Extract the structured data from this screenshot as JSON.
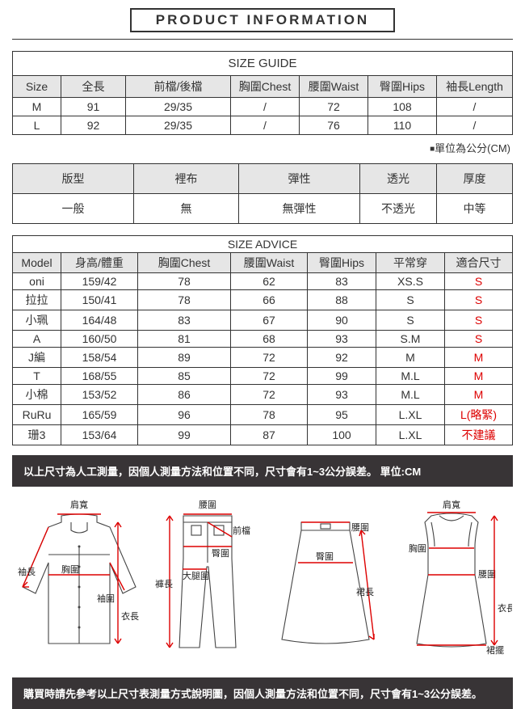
{
  "title": "PRODUCT INFORMATION",
  "sizeGuide": {
    "heading": "SIZE GUIDE",
    "columns": [
      "Size",
      "全長",
      "前檔/後檔",
      "胸圍Chest",
      "腰圍Waist",
      "臀圍Hips",
      "袖長Length"
    ],
    "rows": [
      [
        "M",
        "91",
        "29/35",
        "/",
        "72",
        "108",
        "/"
      ],
      [
        "L",
        "92",
        "29/35",
        "/",
        "76",
        "110",
        "/"
      ]
    ],
    "unitNote": "單位為公分(CM)"
  },
  "attributes": {
    "columns": [
      "版型",
      "裡布",
      "彈性",
      "透光",
      "厚度"
    ],
    "values": [
      "一般",
      "無",
      "無彈性",
      "不透光",
      "中等"
    ]
  },
  "sizeAdvice": {
    "heading": "SIZE ADVICE",
    "columns": [
      "Model",
      "身高/體重",
      "胸圍Chest",
      "腰圍Waist",
      "臀圍Hips",
      "平常穿",
      "適合尺寸"
    ],
    "rows": [
      {
        "cells": [
          "oni",
          "159/42",
          "78",
          "62",
          "83",
          "XS.S"
        ],
        "advice": "S"
      },
      {
        "cells": [
          "拉拉",
          "150/41",
          "78",
          "66",
          "88",
          "S"
        ],
        "advice": "S"
      },
      {
        "cells": [
          "小珮",
          "164/48",
          "83",
          "67",
          "90",
          "S"
        ],
        "advice": "S"
      },
      {
        "cells": [
          "A",
          "160/50",
          "81",
          "68",
          "93",
          "S.M"
        ],
        "advice": "S"
      },
      {
        "cells": [
          "J編",
          "158/54",
          "89",
          "72",
          "92",
          "M"
        ],
        "advice": "M"
      },
      {
        "cells": [
          "T",
          "168/55",
          "85",
          "72",
          "99",
          "M.L"
        ],
        "advice": "M"
      },
      {
        "cells": [
          "小棉",
          "153/52",
          "86",
          "72",
          "93",
          "M.L"
        ],
        "advice": "M"
      },
      {
        "cells": [
          "RuRu",
          "165/59",
          "96",
          "78",
          "95",
          "L.XL"
        ],
        "advice": "L(略緊)"
      },
      {
        "cells": [
          "珊3",
          "153/64",
          "99",
          "87",
          "100",
          "L.XL"
        ],
        "advice": "不建議"
      }
    ]
  },
  "notice1": "以上尺寸為人工測量，因個人測量方法和位置不同，尺寸會有1~3公分誤差。 單位:CM",
  "notice2": "購買時請先參考以上尺寸表測量方式說明圖，因個人測量方法和位置不同，尺寸會有1~3公分誤差。",
  "diagrams": {
    "shirt": {
      "肩寬": "肩寬",
      "胸圍": "胸圍",
      "袖長": "袖長",
      "袖圍": "袖圍",
      "衣長": "衣長"
    },
    "pants": {
      "腰圍": "腰圍",
      "前檔": "前檔",
      "臀圍": "臀圍",
      "大腿圍": "大腿圍",
      "褲長": "褲長"
    },
    "skirt": {
      "腰圍": "腰圍",
      "臀圍": "臀圍",
      "裙長": "裙長"
    },
    "dress": {
      "肩寬": "肩寬",
      "胸圍": "胸圍",
      "腰圍": "腰圍",
      "衣長": "衣長",
      "裙擺": "裙擺"
    }
  },
  "style": {
    "grayBg": "#e6e6e6",
    "redText": "#d00",
    "border": "#333",
    "noticeBg": "#383436"
  }
}
